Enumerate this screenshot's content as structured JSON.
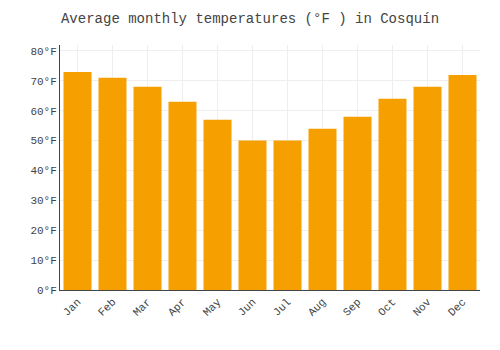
{
  "chart_data": {
    "type": "bar",
    "title": "Average monthly temperatures (°F ) in Cosquín",
    "categories": [
      "Jan",
      "Feb",
      "Mar",
      "Apr",
      "May",
      "Jun",
      "Jul",
      "Aug",
      "Sep",
      "Oct",
      "Nov",
      "Dec"
    ],
    "values": [
      73,
      71,
      68,
      63,
      57,
      50,
      50,
      54,
      58,
      64,
      68,
      72
    ],
    "color": "#F5A000",
    "ylim": [
      0,
      82
    ],
    "yticks": [
      {
        "value": 0,
        "label": "0°F"
      },
      {
        "value": 10,
        "label": "10°F"
      },
      {
        "value": 20,
        "label": "20°F"
      },
      {
        "value": 30,
        "label": "30°F"
      },
      {
        "value": 40,
        "label": "40°F"
      },
      {
        "value": 50,
        "label": "50°F"
      },
      {
        "value": 60,
        "label": "60°F"
      },
      {
        "value": 70,
        "label": "70°F"
      },
      {
        "value": 80,
        "label": "80°F"
      }
    ],
    "grid": true
  }
}
